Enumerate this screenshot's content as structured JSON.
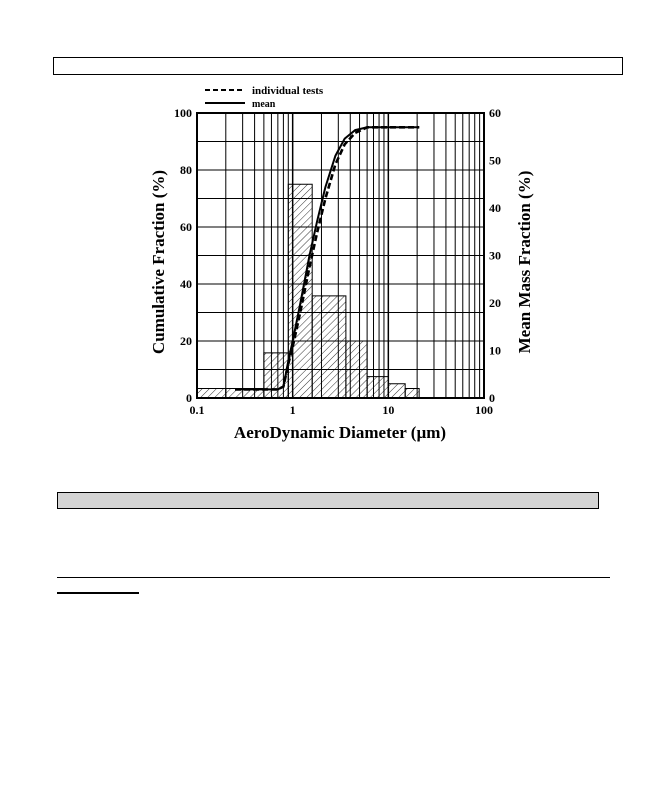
{
  "chart_data": {
    "type": "line",
    "title": "",
    "xlabel": "AeroDynamic Diameter (µm)",
    "ylabel": "Cumulative Fraction (%)",
    "y2label": "Mean Mass Fraction (%)",
    "xscale": "log",
    "xlim": [
      0.1,
      100
    ],
    "ylim": [
      0,
      100
    ],
    "y2lim": [
      0,
      60
    ],
    "x_ticks": [
      "0.1",
      "1",
      "10",
      "100"
    ],
    "y_ticks": [
      "0",
      "20",
      "40",
      "60",
      "80",
      "100"
    ],
    "y2_ticks": [
      "0",
      "10",
      "20",
      "30",
      "40",
      "50",
      "60"
    ],
    "grid": true,
    "legend": {
      "position": "top-left",
      "entries": [
        "individual tests",
        "mean"
      ]
    },
    "series": [
      {
        "name": "individual tests",
        "style": "dashed",
        "x": [
          0.25,
          0.5,
          0.7,
          0.8,
          0.9,
          1.0,
          1.2,
          1.5,
          1.8,
          2.2,
          2.8,
          3.5,
          4.5,
          6.0,
          8.0,
          12.0,
          21.0
        ],
        "y": [
          3,
          3,
          3,
          4,
          12,
          18,
          30,
          46,
          58,
          70,
          82,
          89,
          93,
          95,
          95,
          95,
          95
        ]
      },
      {
        "name": "mean",
        "style": "solid",
        "x": [
          0.25,
          0.5,
          0.7,
          0.8,
          0.9,
          1.0,
          1.2,
          1.5,
          1.8,
          2.2,
          2.8,
          3.5,
          4.5,
          6.0,
          8.0,
          12.0,
          21.0
        ],
        "y": [
          3,
          3,
          3,
          4,
          13,
          20,
          33,
          50,
          62,
          74,
          85,
          91,
          94,
          95,
          95,
          95,
          95
        ]
      }
    ],
    "histogram": {
      "name": "mean mass fraction",
      "axis": "y2",
      "bins": [
        {
          "x0": 0.1,
          "x1": 0.2,
          "value": 2
        },
        {
          "x0": 0.2,
          "x1": 0.5,
          "value": 2
        },
        {
          "x0": 0.5,
          "x1": 0.9,
          "value": 9.5
        },
        {
          "x0": 0.9,
          "x1": 1.6,
          "value": 45
        },
        {
          "x0": 1.6,
          "x1": 3.6,
          "value": 21.5
        },
        {
          "x0": 3.6,
          "x1": 6.0,
          "value": 12
        },
        {
          "x0": 6.0,
          "x1": 10.0,
          "value": 4.5
        },
        {
          "x0": 10.0,
          "x1": 15.0,
          "value": 3
        },
        {
          "x0": 15.0,
          "x1": 21.0,
          "value": 2
        }
      ]
    }
  }
}
